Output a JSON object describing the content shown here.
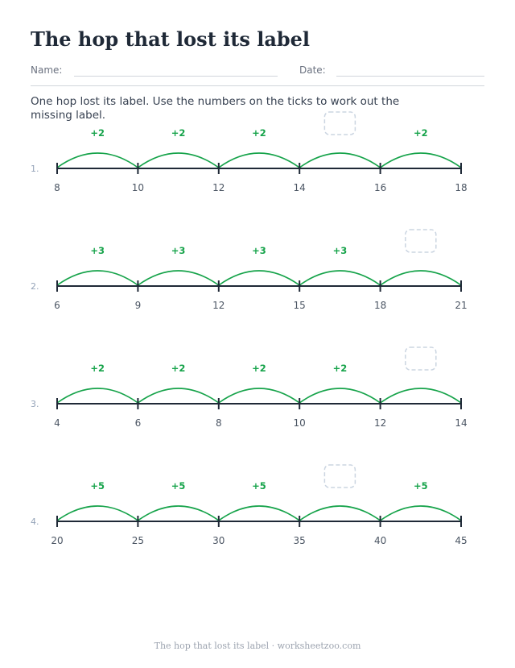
{
  "worksheet": {
    "title": "The hop that lost its label",
    "name_label": "Name:",
    "date_label": "Date:",
    "instructions": "One hop lost its label. Use the numbers on the ticks to work out the missing label.",
    "footer": "The hop that lost its label · worksheetzoo.com"
  },
  "colors": {
    "hop": "#16a34a",
    "axis": "#1f2937",
    "tick_label": "#4b5563",
    "number": "#94a3b8",
    "blank": "#cbd5e1"
  },
  "problems": [
    {
      "number": "1.",
      "ticks": [
        "8",
        "10",
        "12",
        "14",
        "16",
        "18"
      ],
      "hops": [
        "+2",
        "+2",
        "+2",
        "",
        "+2"
      ],
      "missing_index": 3
    },
    {
      "number": "2.",
      "ticks": [
        "6",
        "9",
        "12",
        "15",
        "18",
        "21"
      ],
      "hops": [
        "+3",
        "+3",
        "+3",
        "+3",
        ""
      ],
      "missing_index": 4
    },
    {
      "number": "3.",
      "ticks": [
        "4",
        "6",
        "8",
        "10",
        "12",
        "14"
      ],
      "hops": [
        "+2",
        "+2",
        "+2",
        "+2",
        ""
      ],
      "missing_index": 4
    },
    {
      "number": "4.",
      "ticks": [
        "20",
        "25",
        "30",
        "35",
        "40",
        "45"
      ],
      "hops": [
        "+5",
        "+5",
        "+5",
        "",
        "+5"
      ],
      "missing_index": 3
    }
  ]
}
